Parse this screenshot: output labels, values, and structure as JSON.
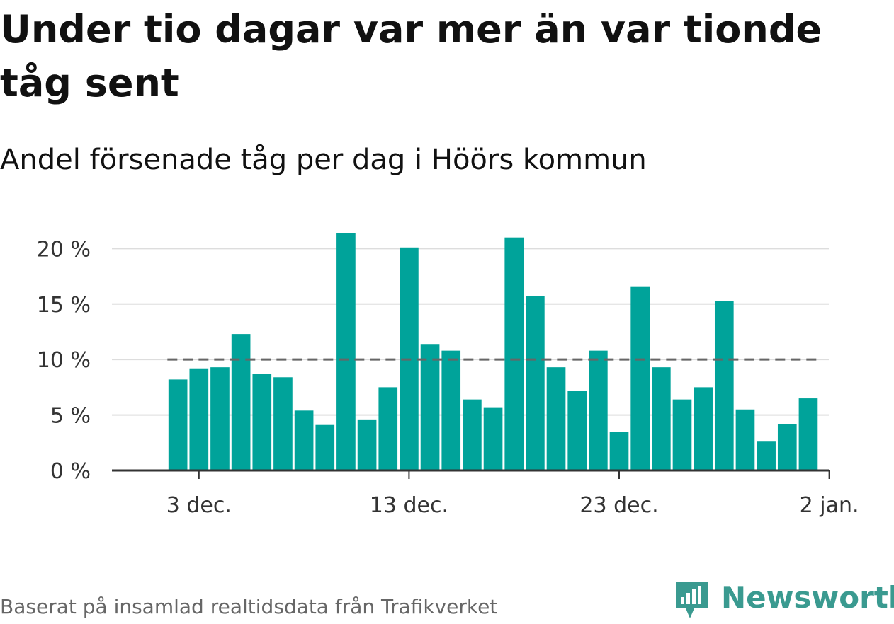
{
  "title": "Under tio dagar var mer än var tionde tåg sent",
  "subtitle": "Andel försenade tåg per dag i Höörs kommun",
  "footer": "Baserat på insamlad realtidsdata från Trafikverket",
  "logo": {
    "name": "Newsworthy",
    "icon": "newsworthy-logo-icon"
  },
  "colors": {
    "bar": "#00a39a",
    "reference_line": "#666666",
    "grid": "#dddddd",
    "axis": "#333333",
    "logo": "#3a9a90"
  },
  "chart_data": {
    "type": "bar",
    "title": "Under tio dagar var mer än var tionde tåg sent",
    "subtitle": "Andel försenade tåg per dag i Höörs kommun",
    "xlabel": "",
    "ylabel": "",
    "x_start": "2019-11-30",
    "x_end": "2020-01-01",
    "x": [
      "2019-11-30",
      "2019-12-01",
      "2019-12-02",
      "2019-12-03",
      "2019-12-04",
      "2019-12-05",
      "2019-12-06",
      "2019-12-07",
      "2019-12-08",
      "2019-12-09",
      "2019-12-10",
      "2019-12-11",
      "2019-12-12",
      "2019-12-13",
      "2019-12-14",
      "2019-12-15",
      "2019-12-16",
      "2019-12-17",
      "2019-12-18",
      "2019-12-19",
      "2019-12-20",
      "2019-12-21",
      "2019-12-22",
      "2019-12-23",
      "2019-12-24",
      "2019-12-25",
      "2019-12-26",
      "2019-12-27",
      "2019-12-28",
      "2019-12-29",
      "2019-12-30",
      "2019-12-31",
      "2020-01-01"
    ],
    "values": [
      null,
      null,
      8.2,
      9.2,
      9.3,
      12.3,
      8.7,
      8.4,
      5.4,
      4.1,
      21.4,
      4.6,
      7.5,
      20.1,
      11.4,
      10.8,
      6.4,
      5.7,
      21.0,
      15.7,
      9.3,
      7.2,
      10.8,
      3.5,
      16.6,
      9.3,
      6.4,
      7.5,
      15.3,
      5.5,
      2.6,
      4.2,
      6.5
    ],
    "x_ticks": [
      {
        "date": "2019-12-03",
        "label": "3 dec."
      },
      {
        "date": "2019-12-13",
        "label": "13 dec."
      },
      {
        "date": "2019-12-23",
        "label": "23 dec."
      },
      {
        "date": "2020-01-02",
        "label": "2 jan."
      }
    ],
    "y_ticks": [
      0,
      5,
      10,
      15,
      20
    ],
    "y_tick_labels": [
      "0 %",
      "5 %",
      "10 %",
      "15 %",
      "20 %"
    ],
    "ylim": [
      0,
      22
    ],
    "reference_line": {
      "value": 10,
      "style": "dashed"
    },
    "grid": true,
    "legend": "none"
  }
}
